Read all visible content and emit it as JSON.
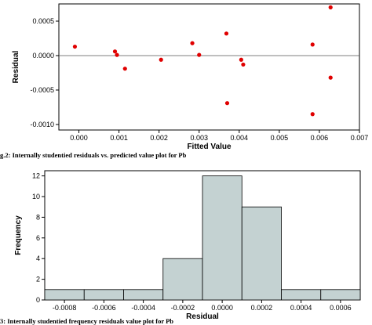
{
  "captions": {
    "top": "g.2: Internally studentied residuals vs. predicted value plot for Pb",
    "bottom": "3: Internally studentied frequency residuals value plot for Pb"
  },
  "chart_data": [
    {
      "type": "scatter",
      "xlabel": "Fitted Value",
      "ylabel": "Residual",
      "xlim": [
        -0.0005,
        0.007
      ],
      "ylim": [
        -0.00108,
        0.00075
      ],
      "xticks": [
        "0.000",
        "0.001",
        "0.002",
        "0.003",
        "0.004",
        "0.005",
        "0.006",
        "0.007"
      ],
      "yticks": [
        "0.0005",
        "0.0000",
        "-0.0005",
        "-0.0010"
      ],
      "reference_line_y": 0,
      "point_color": "#e00000",
      "points": [
        {
          "x": -0.0001,
          "y": 0.00013
        },
        {
          "x": 0.0009,
          "y": 6e-05
        },
        {
          "x": 0.00095,
          "y": 1e-05
        },
        {
          "x": 0.00115,
          "y": -0.00019
        },
        {
          "x": 0.00205,
          "y": -6e-05
        },
        {
          "x": 0.00283,
          "y": 0.00018
        },
        {
          "x": 0.003,
          "y": 1e-05
        },
        {
          "x": 0.00368,
          "y": 0.00032
        },
        {
          "x": 0.0037,
          "y": -0.00069
        },
        {
          "x": 0.00405,
          "y": -6e-05
        },
        {
          "x": 0.0041,
          "y": -0.00013
        },
        {
          "x": 0.00583,
          "y": 0.00016
        },
        {
          "x": 0.00583,
          "y": -0.00085
        },
        {
          "x": 0.00628,
          "y": 0.0007
        },
        {
          "x": 0.00628,
          "y": -0.00032
        }
      ]
    },
    {
      "type": "bar",
      "xlabel": "Residual",
      "ylabel": "Frequency",
      "xlim": [
        -0.0009,
        0.0007
      ],
      "ylim": [
        0,
        12.5
      ],
      "xticks": [
        "-0.0008",
        "-0.0006",
        "-0.0004",
        "-0.0002",
        "0.0000",
        "0.0002",
        "0.0004",
        "0.0006"
      ],
      "yticks": [
        "0",
        "2",
        "4",
        "6",
        "8",
        "10",
        "12"
      ],
      "bar_color": "#c4d2d2",
      "bins": [
        {
          "center": -0.0008,
          "value": 1
        },
        {
          "center": -0.0006,
          "value": 1
        },
        {
          "center": -0.0004,
          "value": 1
        },
        {
          "center": -0.0002,
          "value": 4
        },
        {
          "center": 0.0,
          "value": 12
        },
        {
          "center": 0.0002,
          "value": 9
        },
        {
          "center": 0.0004,
          "value": 1
        },
        {
          "center": 0.0006,
          "value": 1
        }
      ]
    }
  ]
}
